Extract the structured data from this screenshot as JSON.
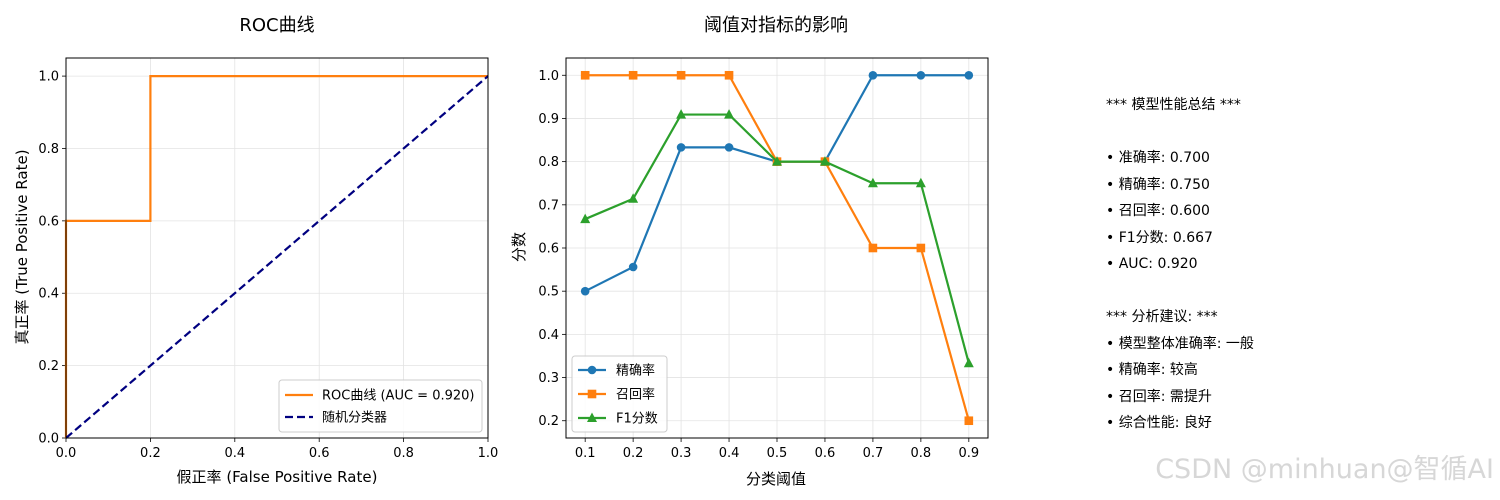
{
  "chart_data": [
    {
      "type": "line",
      "title": "ROC曲线",
      "xlabel": "假正率 (False Positive Rate)",
      "ylabel": "真正率 (True Positive Rate)",
      "xlim": [
        0,
        1
      ],
      "ylim": [
        0,
        1.05
      ],
      "xticks": [
        "0.0",
        "0.2",
        "0.4",
        "0.6",
        "0.8",
        "1.0"
      ],
      "yticks": [
        "0.0",
        "0.2",
        "0.4",
        "0.6",
        "0.8",
        "1.0"
      ],
      "grid": true,
      "legend_position": "lower-right",
      "series": [
        {
          "name": "ROC曲线 (AUC = 0.920)",
          "color": "#ff7f0e",
          "style": "solid",
          "x": [
            0,
            0,
            0.2,
            0.2,
            1.0
          ],
          "y": [
            0,
            0.6,
            0.6,
            1.0,
            1.0
          ]
        },
        {
          "name": "随机分类器",
          "color": "#000080",
          "style": "dashed",
          "x": [
            0,
            1
          ],
          "y": [
            0,
            1
          ]
        }
      ]
    },
    {
      "type": "line",
      "title": "阈值对指标的影响",
      "xlabel": "分类阈值",
      "ylabel": "分数",
      "xlim": [
        0.06,
        0.94
      ],
      "ylim": [
        0.16,
        1.04
      ],
      "xticks": [
        "0.1",
        "0.2",
        "0.3",
        "0.4",
        "0.5",
        "0.6",
        "0.7",
        "0.8",
        "0.9"
      ],
      "yticks": [
        "0.2",
        "0.3",
        "0.4",
        "0.5",
        "0.6",
        "0.7",
        "0.8",
        "0.9",
        "1.0"
      ],
      "grid": true,
      "legend_position": "lower-left",
      "x": [
        0.1,
        0.2,
        0.3,
        0.4,
        0.5,
        0.6,
        0.7,
        0.8,
        0.9
      ],
      "series": [
        {
          "name": "精确率",
          "color": "#1f77b4",
          "marker": "circle",
          "values": [
            0.5,
            0.556,
            0.833,
            0.833,
            0.8,
            0.8,
            1.0,
            1.0,
            1.0
          ]
        },
        {
          "name": "召回率",
          "color": "#ff7f0e",
          "marker": "square",
          "values": [
            1.0,
            1.0,
            1.0,
            1.0,
            0.8,
            0.8,
            0.6,
            0.6,
            0.2
          ]
        },
        {
          "name": "F1分数",
          "color": "#2ca02c",
          "marker": "triangle",
          "values": [
            0.667,
            0.714,
            0.909,
            0.909,
            0.8,
            0.8,
            0.75,
            0.75,
            0.333
          ]
        }
      ]
    }
  ],
  "summary": {
    "lines": [
      "*** 模型性能总结 ***",
      "",
      "• 准确率: 0.700",
      "• 精确率: 0.750",
      "• 召回率: 0.600",
      "• F1分数: 0.667",
      "• AUC: 0.920",
      "",
      "*** 分析建议: ***",
      "• 模型整体准确率: 一般",
      "• 精确率: 较高",
      "• 召回率: 需提升",
      "• 综合性能: 良好"
    ]
  },
  "watermark": "CSDN @minhuan@智循AI"
}
